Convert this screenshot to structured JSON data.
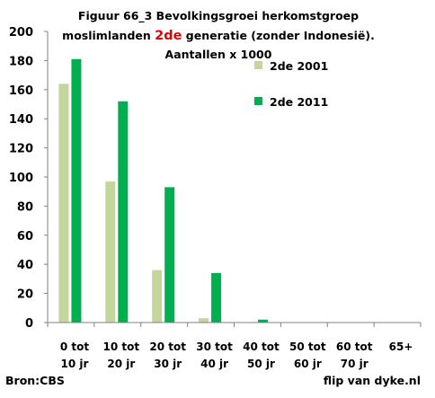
{
  "chart_data": {
    "type": "bar",
    "title_lines": [
      {
        "parts": [
          {
            "text": "Figuur 66_3 Bevolkingsgroei herkomstgroep",
            "color": "#000000"
          }
        ]
      },
      {
        "parts": [
          {
            "text": "moslimlanden ",
            "color": "#000000"
          },
          {
            "text": "2de",
            "color": "#e00000"
          },
          {
            "text": " generatie (zonder Indonesië).",
            "color": "#000000"
          }
        ]
      },
      {
        "parts": [
          {
            "text": "Aantallen x 1000",
            "color": "#000000"
          }
        ]
      }
    ],
    "categories": [
      [
        "0 tot",
        "10 jr"
      ],
      [
        "10 tot",
        "20 jr"
      ],
      [
        "20 tot",
        "30 jr"
      ],
      [
        "30 tot",
        "40 jr"
      ],
      [
        "40 tot",
        "50 jr"
      ],
      [
        "50 tot",
        "60 jr"
      ],
      [
        "60 tot",
        "70 jr"
      ],
      [
        "65+"
      ]
    ],
    "series": [
      {
        "name": "2de 2001",
        "color": "#c3d69b",
        "values": [
          164,
          97,
          36,
          3,
          0,
          0,
          0,
          0
        ]
      },
      {
        "name": "2de 2011",
        "color": "#00b050",
        "values": [
          181,
          152,
          93,
          34,
          2,
          0,
          0,
          0
        ]
      }
    ],
    "ylim": [
      0,
      200
    ],
    "yticks": [
      0,
      20,
      40,
      60,
      80,
      100,
      120,
      140,
      160,
      180,
      200
    ],
    "grid": false,
    "legend_position": "top-right",
    "source_label": "Bron:CBS",
    "credit_label": "flip van dyke.nl"
  }
}
